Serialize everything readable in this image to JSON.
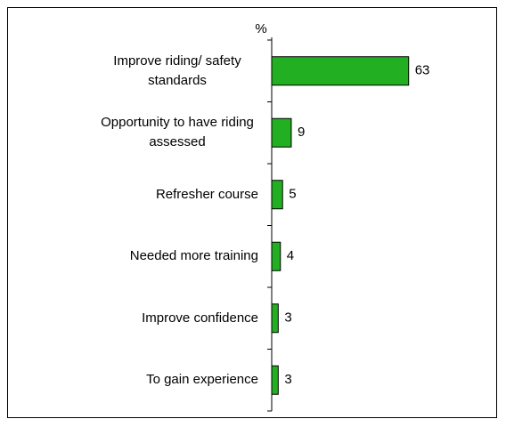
{
  "chart_data": {
    "type": "bar",
    "orientation": "horizontal",
    "axis_label": "%",
    "categories": [
      "Improve riding/ safety standards",
      "Opportunity to have riding assessed",
      "Refresher course",
      "Needed more training",
      "Improve confidence",
      "To gain experience"
    ],
    "values": [
      63,
      9,
      5,
      4,
      3,
      3
    ],
    "color": "#22b022"
  }
}
